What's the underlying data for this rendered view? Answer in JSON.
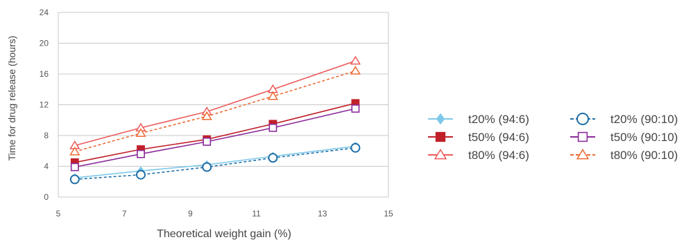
{
  "chart_data": {
    "type": "line",
    "xlabel": "Theoretical weight gain (%)",
    "ylabel": "Time for drug release (hours)",
    "xlim": [
      5,
      15
    ],
    "ylim": [
      0,
      24
    ],
    "xticks": [
      5,
      7,
      9,
      11,
      13,
      15
    ],
    "yticks": [
      0,
      4,
      8,
      12,
      16,
      20,
      24
    ],
    "grid": "horizontal",
    "legend_position": "right",
    "series": [
      {
        "name": "t20% (94:6)",
        "color": "#7ec8e8",
        "marker": "diamond",
        "marker_fill": "filled",
        "dash": "solid",
        "points": [
          [
            5.5,
            2.5
          ],
          [
            7.5,
            3.4
          ],
          [
            9.5,
            4.2
          ],
          [
            11.5,
            5.3
          ],
          [
            14.0,
            6.6
          ]
        ]
      },
      {
        "name": "t50% (94:6)",
        "color": "#c0202a",
        "marker": "square",
        "marker_fill": "filled",
        "dash": "solid",
        "points": [
          [
            5.5,
            4.5
          ],
          [
            7.5,
            6.2
          ],
          [
            9.5,
            7.5
          ],
          [
            11.5,
            9.5
          ],
          [
            14.0,
            12.2
          ]
        ]
      },
      {
        "name": "t80% (94:6)",
        "color": "#ec5a5a",
        "marker": "triangle",
        "marker_fill": "open",
        "dash": "solid",
        "points": [
          [
            5.5,
            6.7
          ],
          [
            7.5,
            9.0
          ],
          [
            9.5,
            11.1
          ],
          [
            11.5,
            14.0
          ],
          [
            14.0,
            17.7
          ]
        ]
      },
      {
        "name": "t20% (90:10)",
        "color": "#1f6fa8",
        "marker": "circle",
        "marker_fill": "open",
        "dash": "dashed",
        "points": [
          [
            5.5,
            2.3
          ],
          [
            7.5,
            2.9
          ],
          [
            9.5,
            3.9
          ],
          [
            11.5,
            5.1
          ],
          [
            14.0,
            6.4
          ]
        ]
      },
      {
        "name": "t50% (90:10)",
        "color": "#8a2a9a",
        "marker": "square",
        "marker_fill": "open",
        "dash": "solid",
        "points": [
          [
            5.5,
            3.9
          ],
          [
            7.5,
            5.6
          ],
          [
            9.5,
            7.2
          ],
          [
            11.5,
            9.0
          ],
          [
            14.0,
            11.5
          ]
        ]
      },
      {
        "name": "t80% (90:10)",
        "color": "#ec6a32",
        "marker": "triangle",
        "marker_fill": "open",
        "dash": "dashed",
        "points": [
          [
            5.5,
            5.9
          ],
          [
            7.5,
            8.3
          ],
          [
            9.5,
            10.5
          ],
          [
            11.5,
            13.1
          ],
          [
            14.0,
            16.4
          ]
        ]
      }
    ]
  }
}
